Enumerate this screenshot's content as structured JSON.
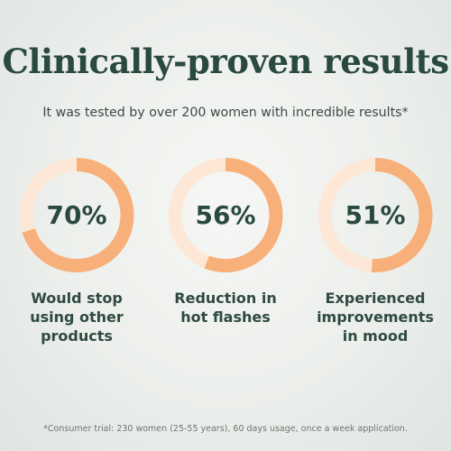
{
  "title": "Clinically-proven results",
  "subtitle": "It was tested by over 200 women with incredible results*",
  "colors": {
    "accent": "#f8b07a",
    "track": "#fde8d8",
    "text": "#2a4a3f"
  },
  "stats": [
    {
      "value_text": "70%",
      "value": 70,
      "label": "Would stop\nusing other\nproducts"
    },
    {
      "value_text": "56%",
      "value": 56,
      "label": "Reduction in\nhot flashes"
    },
    {
      "value_text": "51%",
      "value": 51,
      "label": "Experienced\nimprovements\nin mood"
    }
  ],
  "footnote": "*Consumer trial: 230 women (25-55 years), 60 days usage, once a week application."
}
